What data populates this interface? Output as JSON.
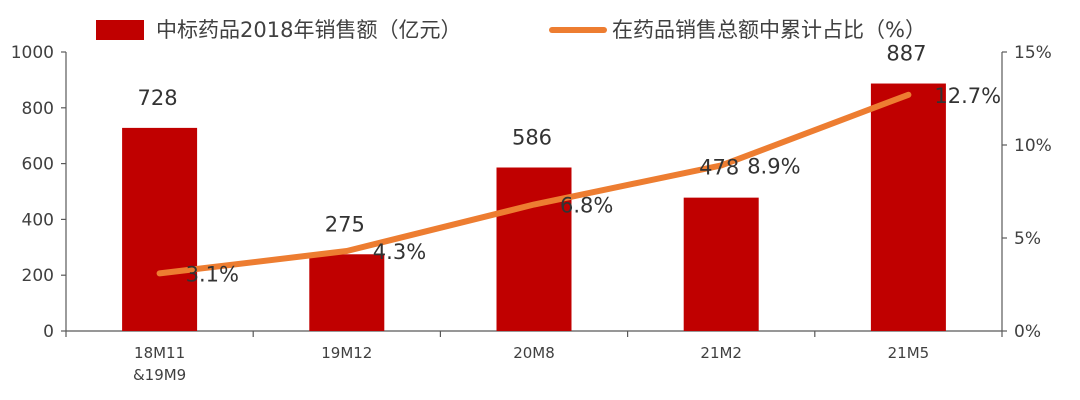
{
  "chart_data": {
    "type": "bar",
    "categories": [
      "18M11\n&19M9",
      "19M12",
      "20M8",
      "21M2",
      "21M5"
    ],
    "series": [
      {
        "name": "中标药品2018年销售额（亿元）",
        "type": "bar",
        "axis": "left",
        "color": "#c00000",
        "values": [
          728,
          275,
          586,
          478,
          887
        ],
        "labels": [
          "728",
          "275",
          "586",
          "478",
          "887"
        ]
      },
      {
        "name": "在药品销售总额中累计占比（%）",
        "type": "line",
        "axis": "right",
        "color": "#ed7d31",
        "values": [
          3.1,
          4.3,
          6.8,
          8.9,
          12.7
        ],
        "labels": [
          "3.1%",
          "4.3%",
          "6.8%",
          "8.9%",
          "12.7%"
        ]
      }
    ],
    "y_left": {
      "min": 0,
      "max": 1000,
      "ticks": [
        "0",
        "200",
        "400",
        "600",
        "800",
        "1000"
      ]
    },
    "y_right": {
      "min": 0,
      "max": 15,
      "ticks": [
        "0%",
        "5%",
        "10%",
        "15%"
      ]
    },
    "legend_position": "top",
    "grid": false
  }
}
